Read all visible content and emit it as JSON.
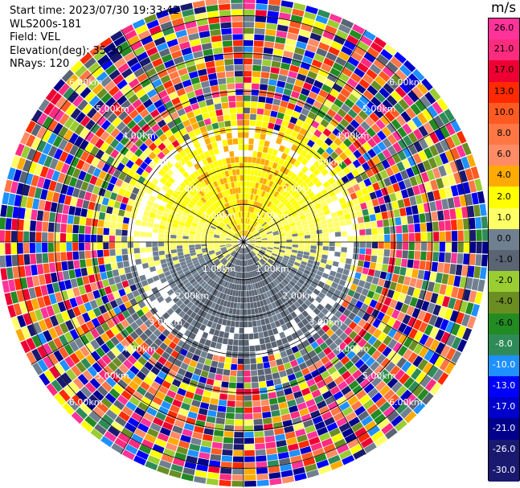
{
  "header": {
    "start_time": "Start time: 2023/07/30 19:33:42",
    "instrument": "WLS200s-181",
    "field": "Field: VEL",
    "elevation": "Elevation(deg): 35.30",
    "nrays": "NRays: 120"
  },
  "colorbar": {
    "unit": "m/s",
    "ticks": [
      "26.0",
      "21.0",
      "17.0",
      "13.0",
      "10.0",
      "8.0",
      "6.0",
      "4.0",
      "2.0",
      "1.0",
      "0.0",
      "-1.0",
      "-2.0",
      "-4.0",
      "-6.0",
      "-8.0",
      "-10.0",
      "-13.0",
      "-17.0",
      "-21.0",
      "-26.0",
      "-30.0"
    ],
    "colors": [
      "#ff3399",
      "#ff2b7e",
      "#ee0033",
      "#ff2a00",
      "#ff5a22",
      "#ff7744",
      "#ff8c66",
      "#ffaa00",
      "#ffff00",
      "#ffff66",
      "#708090",
      "#5a6473",
      "#9acd32",
      "#6b8e23",
      "#228b22",
      "#2e8b57",
      "#1e90ff",
      "#0000ff",
      "#0000cd",
      "#00008b",
      "#191970",
      "#191970"
    ]
  },
  "chart_data": {
    "type": "heatmap",
    "title": "",
    "field": "VEL",
    "units": "m/s",
    "nrays": 120,
    "elevation_deg": 35.3,
    "range_km_max": 6.5,
    "value_range": [
      -30.0,
      26.0
    ],
    "range_rings_km": [
      1.0,
      2.0,
      3.0,
      4.0,
      5.0,
      6.0
    ],
    "ring_labels": [
      "1.00km",
      "2.00km",
      "3.00km",
      "4.00km",
      "5.00km",
      "6.00km"
    ],
    "spokes_deg": [
      0,
      30,
      60,
      90,
      120,
      150,
      180,
      210,
      240,
      270,
      300,
      330
    ],
    "pattern": {
      "near_field_north": "yellow/orange positive velocities 1 to 6 m/s",
      "near_field_south": "green negative velocities -1 to -6 m/s",
      "center": "grey near 0 m/s",
      "far_field": "noisy random values across full scale beyond about 3 km"
    }
  }
}
